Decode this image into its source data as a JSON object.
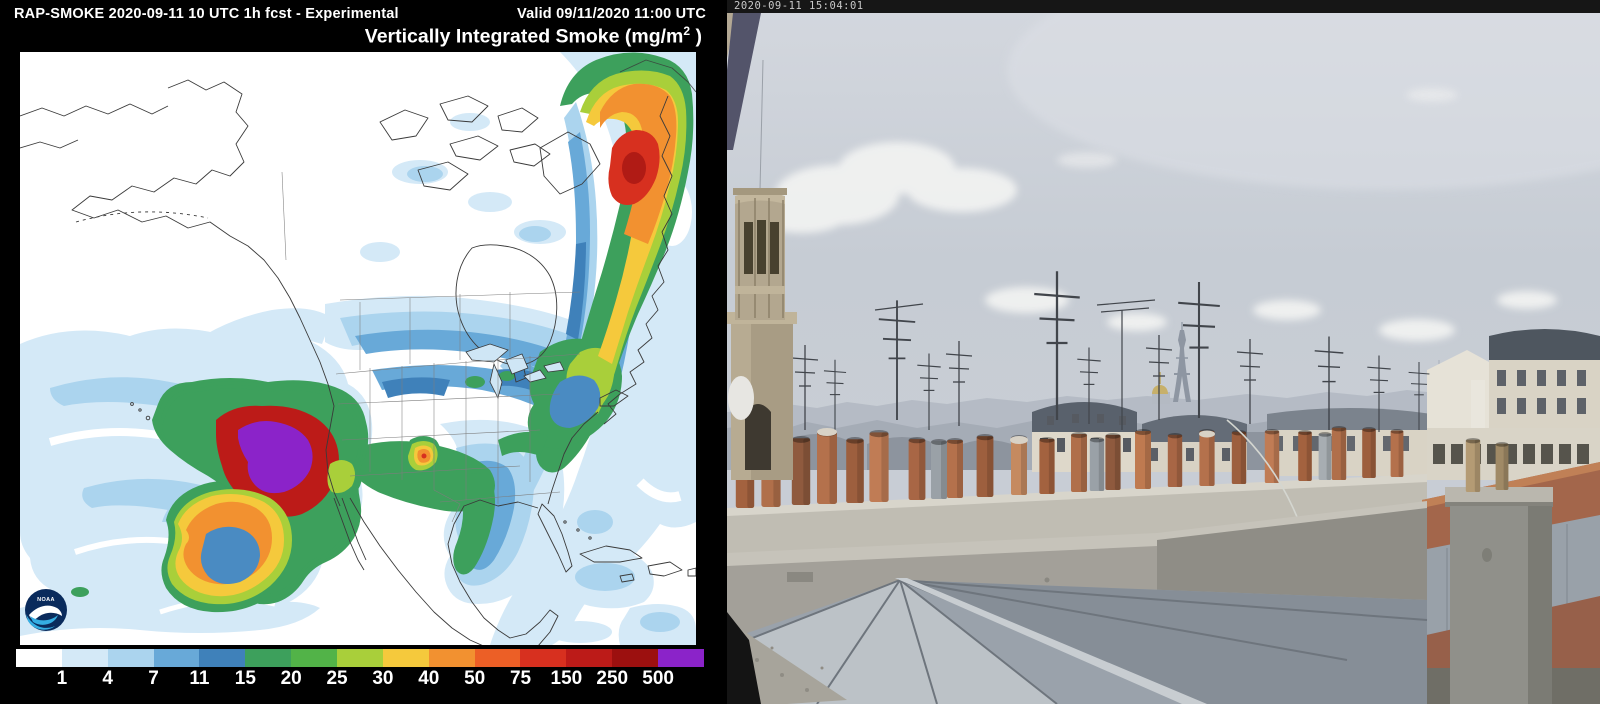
{
  "left_panel": {
    "header": {
      "model_line": "RAP-SMOKE 2020-09-11 10 UTC 1h fcst - Experimental",
      "valid_line": "Valid 09/11/2020 11:00 UTC"
    },
    "subtitle": {
      "prefix": "Vertically Integrated Smoke (mg/m",
      "sup": "2",
      "suffix": " )"
    },
    "colorbar": {
      "labels": [
        "1",
        "4",
        "7",
        "11",
        "15",
        "20",
        "25",
        "30",
        "40",
        "50",
        "75",
        "150",
        "250",
        "500"
      ],
      "colors": [
        "#ffffff",
        "#d4e9f7",
        "#abd4ee",
        "#68a9d8",
        "#3f81ba",
        "#3da05c",
        "#52b348",
        "#a9cf3a",
        "#f5c93c",
        "#f29130",
        "#ec5f26",
        "#d7301f",
        "#bc1b18",
        "#9c100f",
        "#8b23c9"
      ]
    },
    "logo_label": "NOAA"
  },
  "right_panel": {
    "timestamp": "2020-09-11 15:04:01"
  },
  "colors": {
    "smoke_purple_max": "#8b23c9",
    "smoke_red": "#d7301f",
    "sky": "#c8cdd5",
    "terracotta_chimney": "#b06f4a"
  }
}
